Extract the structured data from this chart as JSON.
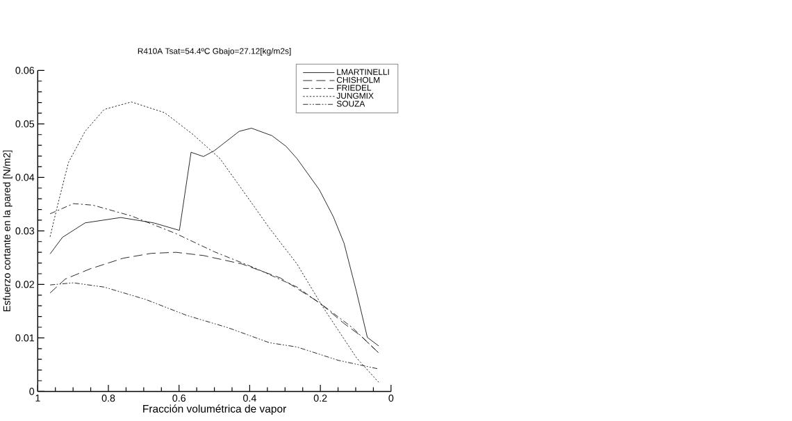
{
  "chart_data": {
    "type": "line",
    "title": "R410A Tsat=54.4ºC Gbajo=27.12[kg/m2s]",
    "xlabel": "Fracción volumétrica de vapor",
    "ylabel": "Esfuerzo cortante en la pared [N/m2]",
    "xlim": [
      1,
      0
    ],
    "ylim": [
      0,
      0.06
    ],
    "xticks": [
      1,
      0.8,
      0.6,
      0.4,
      0.2,
      0
    ],
    "yticks": [
      0,
      0.01,
      0.02,
      0.03,
      0.04,
      0.05,
      0.06
    ],
    "grid": false,
    "legend": "top right",
    "marker": "none",
    "series": [
      {
        "name": "LMARTINELLI",
        "color": "#000000",
        "line_style": "solid",
        "x": [
          0.965,
          0.93,
          0.866,
          0.765,
          0.672,
          0.599,
          0.566,
          0.531,
          0.5,
          0.43,
          0.395,
          0.337,
          0.297,
          0.266,
          0.203,
          0.163,
          0.133,
          0.098,
          0.067,
          0.035
        ],
        "values": [
          0.0257,
          0.0288,
          0.0315,
          0.0325,
          0.0315,
          0.0301,
          0.0447,
          0.0439,
          0.045,
          0.0486,
          0.0492,
          0.0478,
          0.0458,
          0.0435,
          0.0377,
          0.0326,
          0.0277,
          0.0187,
          0.0101,
          0.0085
        ]
      },
      {
        "name": "CHISHOLM",
        "color": "#000000",
        "line_style": "dashed",
        "x": [
          0.965,
          0.922,
          0.852,
          0.758,
          0.679,
          0.609,
          0.531,
          0.421,
          0.313,
          0.203,
          0.133,
          0.086,
          0.035
        ],
        "values": [
          0.0184,
          0.021,
          0.0229,
          0.0249,
          0.0258,
          0.026,
          0.0254,
          0.0238,
          0.0212,
          0.0166,
          0.0127,
          0.0104,
          0.0072
        ]
      },
      {
        "name": "FRIEDEL",
        "color": "#000000",
        "line_style": "dashdot",
        "x": [
          0.965,
          0.899,
          0.843,
          0.735,
          0.609,
          0.5,
          0.383,
          0.266,
          0.187,
          0.109,
          0.035
        ],
        "values": [
          0.0332,
          0.0351,
          0.0348,
          0.0328,
          0.0295,
          0.0261,
          0.023,
          0.0195,
          0.0158,
          0.0119,
          0.0072
        ]
      },
      {
        "name": "JUNGMIX",
        "color": "#000000",
        "line_style": "dotted",
        "x": [
          0.965,
          0.946,
          0.913,
          0.866,
          0.812,
          0.735,
          0.641,
          0.562,
          0.484,
          0.391,
          0.344,
          0.266,
          0.196,
          0.149,
          0.098,
          0.035
        ],
        "values": [
          0.0289,
          0.0342,
          0.0428,
          0.0486,
          0.0527,
          0.0541,
          0.0521,
          0.0481,
          0.0435,
          0.0349,
          0.0305,
          0.0238,
          0.0161,
          0.0114,
          0.0063,
          0.0017
        ]
      },
      {
        "name": "SOUZA",
        "color": "#000000",
        "line_style": "dashdotdot",
        "x": [
          0.965,
          0.899,
          0.812,
          0.695,
          0.578,
          0.461,
          0.344,
          0.266,
          0.149,
          0.035
        ],
        "values": [
          0.0199,
          0.0203,
          0.0195,
          0.0172,
          0.0142,
          0.0119,
          0.0091,
          0.0083,
          0.0058,
          0.0042
        ]
      }
    ]
  }
}
